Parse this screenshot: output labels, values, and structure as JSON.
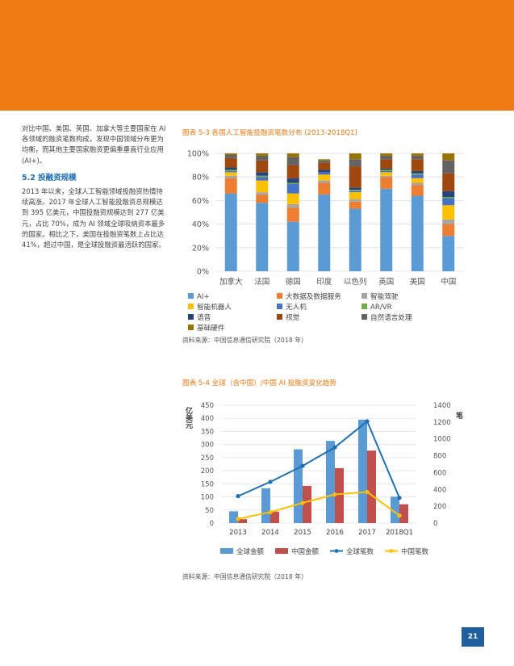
{
  "left_text": {
    "para1": "对比中国、美国、英国、加拿大等主要国家在 AI 各领域的融资笔数构成，发现中国领域分布更为均衡，而其他主要国家融资更偏重垂直行业应用 (AI+)。",
    "heading": "5.2 投融资规模",
    "para2": "2013 年以来，全球人工智能领域投融资热情持续高涨。2017 年全球人工智能投融资总规模达到 395 亿美元，中国投融资规模达到 277 亿美元，占比 70%，成为 AI 领域全球吸纳资本最多的国家。相比之下，美国在投融资笔数上占比达 41%，超过中国，是全球投融资最活跃的国家。"
  },
  "fig1": {
    "title": "图表 5-3 各国人工智能投融资笔数分布 (2013-2018Q1)",
    "source": "资料来源：中国信息通信研究院（2018 年）"
  },
  "fig2": {
    "title": "图表 5-4 全球（含中国）/中国 AI 投融资变化趋势",
    "source": "资料来源：中国信息通信研究院（2018 年）"
  },
  "page_number": "21",
  "chart_data": [
    {
      "type": "bar",
      "stacked": true,
      "percent": true,
      "categories": [
        "加拿大",
        "法国",
        "德国",
        "印度",
        "以色列",
        "英国",
        "美国",
        "中国"
      ],
      "ylim": [
        0,
        100
      ],
      "yticks": [
        "0%",
        "20%",
        "40%",
        "60%",
        "80%",
        "100%"
      ],
      "legend_position": "bottom",
      "series": [
        {
          "name": "AI+",
          "color": "#5b9bd5",
          "values": [
            66,
            58,
            42,
            65,
            53,
            70,
            64,
            30
          ]
        },
        {
          "name": "大数据及数据服务",
          "color": "#ed7d31",
          "values": [
            13,
            7,
            12,
            10,
            6,
            10,
            9,
            10
          ]
        },
        {
          "name": "智能驾驶",
          "color": "#a5a5a5",
          "values": [
            2,
            2,
            3,
            2,
            2,
            1,
            2,
            4
          ]
        },
        {
          "name": "智能机器人",
          "color": "#ffc000",
          "values": [
            3,
            10,
            9,
            5,
            6,
            3,
            4,
            12
          ]
        },
        {
          "name": "无人机",
          "color": "#4472c4",
          "values": [
            1,
            3,
            8,
            2,
            1,
            1,
            3,
            6
          ]
        },
        {
          "name": "AR/VR",
          "color": "#70ad47",
          "values": [
            1,
            1,
            1,
            0,
            1,
            1,
            1,
            1
          ]
        },
        {
          "name": "语音",
          "color": "#264478",
          "values": [
            2,
            3,
            4,
            2,
            2,
            1,
            2,
            5
          ]
        },
        {
          "name": "视觉",
          "color": "#9e480e",
          "values": [
            8,
            10,
            11,
            6,
            18,
            8,
            10,
            15
          ]
        },
        {
          "name": "自然语言处理",
          "color": "#636363",
          "values": [
            3,
            4,
            7,
            2,
            6,
            3,
            3,
            11
          ]
        },
        {
          "name": "基础硬件",
          "color": "#997300",
          "values": [
            1,
            2,
            3,
            1,
            5,
            2,
            2,
            6
          ]
        }
      ]
    },
    {
      "type": "bar",
      "combo": "bar+line",
      "categories": [
        "2013",
        "2014",
        "2015",
        "2016",
        "2017",
        "2018Q1"
      ],
      "ylabel_left": "亿美元",
      "ylim_left": [
        0,
        450
      ],
      "yticks_left": [
        0,
        50,
        100,
        150,
        200,
        250,
        300,
        350,
        400,
        450
      ],
      "ylabel_right": "笔",
      "ylim_right": [
        0,
        1400
      ],
      "yticks_right": [
        0,
        200,
        400,
        600,
        800,
        1000,
        1200,
        1400
      ],
      "legend_position": "bottom",
      "series": [
        {
          "name": "全球金额",
          "type": "bar",
          "axis": "left",
          "color": "#5b9bd5",
          "values": [
            45,
            133,
            282,
            314,
            395,
            101
          ]
        },
        {
          "name": "中国金额",
          "type": "bar",
          "axis": "left",
          "color": "#c0504d",
          "values": [
            15,
            44,
            142,
            210,
            277,
            72
          ]
        },
        {
          "name": "全球笔数",
          "type": "line",
          "axis": "right",
          "color": "#1f6fb5",
          "values": [
            320,
            490,
            680,
            900,
            1210,
            300
          ]
        },
        {
          "name": "中国笔数",
          "type": "line",
          "axis": "right",
          "color": "#ffc000",
          "values": [
            50,
            130,
            240,
            340,
            370,
            90
          ]
        }
      ]
    }
  ]
}
